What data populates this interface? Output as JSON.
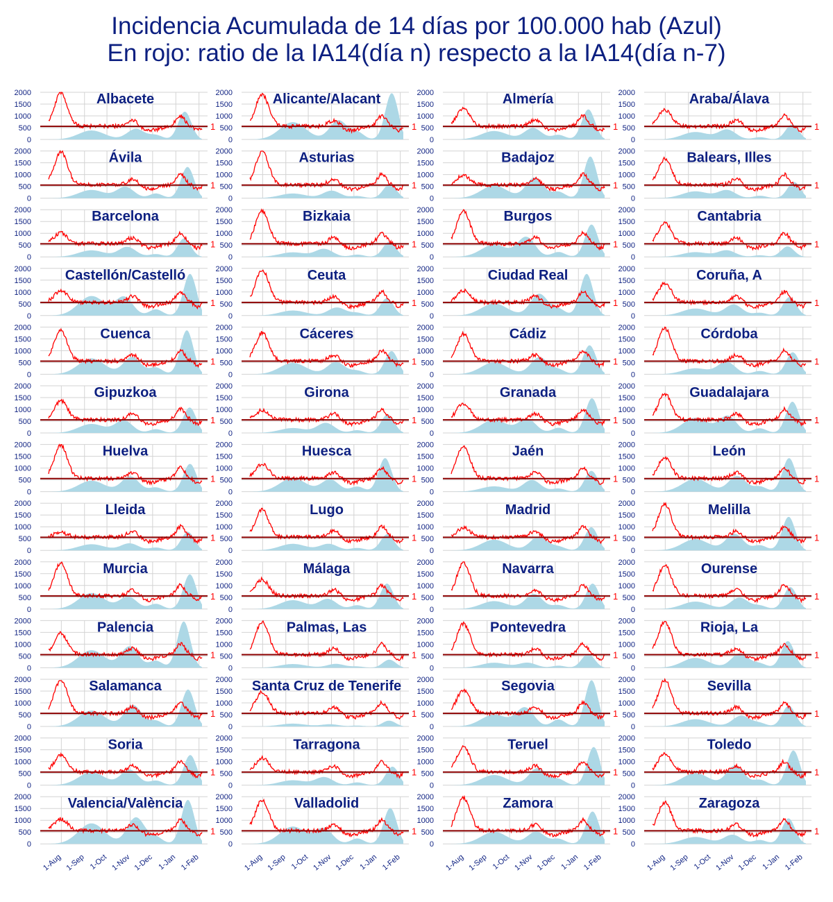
{
  "title": {
    "line1": "Incidencia Acumulada de 14 días por 100.000 hab (Azul)",
    "line2": "En rojo: ratio de la IA14(día n) respecto a la IA14(día n-7)"
  },
  "colors": {
    "title": "#0c1f80",
    "panel_title": "#0c1f80",
    "incidence_fill": "#add8e6",
    "ratio_line": "#ff0000",
    "ratio_one_line": "#8b0000",
    "ratio_label": "#ff0000",
    "grid": "#d3d3d3",
    "tick_label": "#0c1f80"
  },
  "chart_data": {
    "type": "area",
    "layout": "small multiples, 4 columns x 13 rows",
    "y_ticks": [
      "0",
      "500",
      "1000",
      "1500",
      "2000"
    ],
    "ylim": [
      0,
      2000
    ],
    "x_ticks": [
      "1-Aug",
      "1-Sep",
      "1-Oct",
      "1-Nov",
      "1-Dec",
      "1-Jan",
      "1-Feb"
    ],
    "xlim": [
      "2020-07-15",
      "2021-02-05"
    ],
    "ratio_reference_label": "1",
    "ratio_reference_value": 1,
    "series": [
      {
        "name": "Incidencia Acumulada 14 días por 100.000 hab",
        "kind": "area"
      },
      {
        "name": "Ratio IA14(día n) / IA14(día n-7)",
        "kind": "line"
      }
    ],
    "panels": [
      {
        "name": "Albacete",
        "incidence_peak": 1200,
        "ratio_max": 2000
      },
      {
        "name": "Alicante/Alacant",
        "incidence_peak": 2000,
        "ratio_max": 1950
      },
      {
        "name": "Almería",
        "incidence_peak": 1300,
        "ratio_max": 1350
      },
      {
        "name": "Araba/Álava",
        "incidence_peak": 650,
        "ratio_max": 1300
      },
      {
        "name": "Ávila",
        "incidence_peak": 1350,
        "ratio_max": 2000
      },
      {
        "name": "Asturias",
        "incidence_peak": 600,
        "ratio_max": 2000
      },
      {
        "name": "Badajoz",
        "incidence_peak": 1800,
        "ratio_max": 1000
      },
      {
        "name": "Balears, Illes",
        "incidence_peak": 700,
        "ratio_max": 1700
      },
      {
        "name": "Barcelona",
        "incidence_peak": 800,
        "ratio_max": 1050
      },
      {
        "name": "Bizkaia",
        "incidence_peak": 650,
        "ratio_max": 2000
      },
      {
        "name": "Burgos",
        "incidence_peak": 1400,
        "ratio_max": 2000
      },
      {
        "name": "Cantabria",
        "incidence_peak": 450,
        "ratio_max": 1500
      },
      {
        "name": "Castellón/Castelló",
        "incidence_peak": 1800,
        "ratio_max": 1100
      },
      {
        "name": "Ceuta",
        "incidence_peak": 750,
        "ratio_max": 2000
      },
      {
        "name": "Ciudad Real",
        "incidence_peak": 1800,
        "ratio_max": 1100
      },
      {
        "name": "Coruña, A",
        "incidence_peak": 800,
        "ratio_max": 1400
      },
      {
        "name": "Cuenca",
        "incidence_peak": 1900,
        "ratio_max": 1900
      },
      {
        "name": "Cáceres",
        "incidence_peak": 1000,
        "ratio_max": 1800
      },
      {
        "name": "Cádiz",
        "incidence_peak": 1250,
        "ratio_max": 1750
      },
      {
        "name": "Córdoba",
        "incidence_peak": 950,
        "ratio_max": 2000
      },
      {
        "name": "Gipuzkoa",
        "incidence_peak": 1100,
        "ratio_max": 1400
      },
      {
        "name": "Girona",
        "incidence_peak": 800,
        "ratio_max": 1000
      },
      {
        "name": "Granada",
        "incidence_peak": 1500,
        "ratio_max": 1300
      },
      {
        "name": "Guadalajara",
        "incidence_peak": 1350,
        "ratio_max": 1700
      },
      {
        "name": "Huelva",
        "incidence_peak": 1200,
        "ratio_max": 2000
      },
      {
        "name": "Huesca",
        "incidence_peak": 1450,
        "ratio_max": 1200
      },
      {
        "name": "Jaén",
        "incidence_peak": 900,
        "ratio_max": 2000
      },
      {
        "name": "León",
        "incidence_peak": 1450,
        "ratio_max": 1500
      },
      {
        "name": "Lleida",
        "incidence_peak": 800,
        "ratio_max": 800
      },
      {
        "name": "Lugo",
        "incidence_peak": 700,
        "ratio_max": 1750
      },
      {
        "name": "Madrid",
        "incidence_peak": 1000,
        "ratio_max": 1000
      },
      {
        "name": "Melilla",
        "incidence_peak": 1450,
        "ratio_max": 2000
      },
      {
        "name": "Murcia",
        "incidence_peak": 1500,
        "ratio_max": 2000
      },
      {
        "name": "Málaga",
        "incidence_peak": 1100,
        "ratio_max": 1300
      },
      {
        "name": "Navarra",
        "incidence_peak": 1100,
        "ratio_max": 2000
      },
      {
        "name": "Ourense",
        "incidence_peak": 950,
        "ratio_max": 1900
      },
      {
        "name": "Palencia",
        "incidence_peak": 2000,
        "ratio_max": 1500
      },
      {
        "name": "Palmas, Las",
        "incidence_peak": 350,
        "ratio_max": 2000
      },
      {
        "name": "Pontevedra",
        "incidence_peak": 600,
        "ratio_max": 1900
      },
      {
        "name": "Rioja, La",
        "incidence_peak": 1150,
        "ratio_max": 2000
      },
      {
        "name": "Salamanca",
        "incidence_peak": 1600,
        "ratio_max": 2000
      },
      {
        "name": "Santa Cruz de Tenerife",
        "incidence_peak": 250,
        "ratio_max": 1500
      },
      {
        "name": "Segovia",
        "incidence_peak": 2000,
        "ratio_max": 1600
      },
      {
        "name": "Sevilla",
        "incidence_peak": 900,
        "ratio_max": 2000
      },
      {
        "name": "Soria",
        "incidence_peak": 1300,
        "ratio_max": 1300
      },
      {
        "name": "Tarragona",
        "incidence_peak": 800,
        "ratio_max": 1200
      },
      {
        "name": "Teruel",
        "incidence_peak": 1650,
        "ratio_max": 1650
      },
      {
        "name": "Toledo",
        "incidence_peak": 1500,
        "ratio_max": 1400
      },
      {
        "name": "Valencia/València",
        "incidence_peak": 1900,
        "ratio_max": 1100
      },
      {
        "name": "Valladolid",
        "incidence_peak": 1550,
        "ratio_max": 1900
      },
      {
        "name": "Zamora",
        "incidence_peak": 1400,
        "ratio_max": 2000
      },
      {
        "name": "Zaragoza",
        "incidence_peak": 1100,
        "ratio_max": 1800
      }
    ]
  }
}
